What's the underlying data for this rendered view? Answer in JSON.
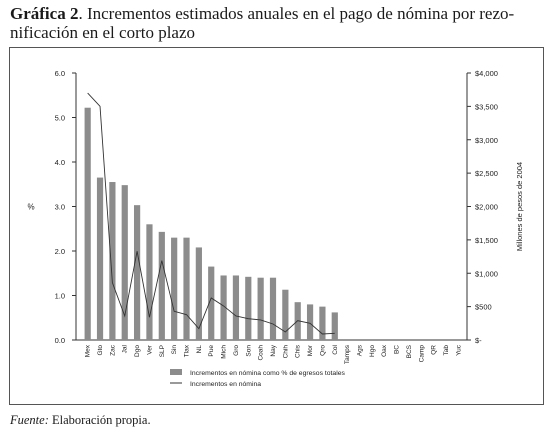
{
  "title": {
    "label": "Gráfica 2",
    "text": ". Incrementos estimados anuales en el pago de nómina por rezo-nificación en el corto plazo",
    "line1": ". Incrementos estimados anuales en el pago de nómina por rezo-",
    "line2": "nificación en el corto plazo"
  },
  "source": {
    "label": "Fuente:",
    "text": " Elaboración propia."
  },
  "chart_data": {
    "type": "bar",
    "categories": [
      "Mex",
      "Gto",
      "Zac",
      "Jal",
      "Dgo",
      "Ver",
      "SLP",
      "Sin",
      "Tlax",
      "NL",
      "Pue",
      "Mich",
      "Gro",
      "Son",
      "Coah",
      "Nay",
      "Chih",
      "Chis",
      "Mor",
      "Qro",
      "Col",
      "Tamps",
      "Ags",
      "Hgo",
      "Oax",
      "BC",
      "BCS",
      "Camp",
      "QR",
      "Tab",
      "Yuc"
    ],
    "series": [
      {
        "name": "Incrementos en nómina como % de egresos totales",
        "axis": "left",
        "kind": "bar",
        "values": [
          5.22,
          3.65,
          3.55,
          3.48,
          3.03,
          2.6,
          2.43,
          2.3,
          2.3,
          2.08,
          1.65,
          1.45,
          1.45,
          1.42,
          1.4,
          1.4,
          1.13,
          0.85,
          0.8,
          0.75,
          0.62,
          0,
          0,
          0,
          0,
          0,
          0,
          0,
          0,
          0,
          0
        ]
      },
      {
        "name": "Incrementos en nómina",
        "axis": "right",
        "kind": "line",
        "values": [
          3700,
          3500,
          860,
          360,
          1330,
          340,
          1190,
          430,
          380,
          170,
          630,
          510,
          360,
          320,
          300,
          240,
          120,
          290,
          250,
          90,
          100,
          0,
          0,
          0,
          0,
          0,
          0,
          0,
          0,
          0,
          0
        ]
      }
    ],
    "ylabel": "%",
    "y2label": "Millones de pesos de 2004",
    "ylim": [
      0,
      6
    ],
    "yticks": [
      "0.0",
      "1.0",
      "2.0",
      "3.0",
      "4.0",
      "5.0",
      "6.0"
    ],
    "y2lim": [
      0,
      4000
    ],
    "y2ticks": [
      "$-",
      "$500",
      "$1,000",
      "$1,500",
      "$2,000",
      "$2,500",
      "$3,000",
      "$3,500",
      "$4,000"
    ],
    "legend_position": "bottom",
    "grid": false,
    "colors": {
      "bar": "#8c8c8c",
      "line": "#333333"
    }
  }
}
